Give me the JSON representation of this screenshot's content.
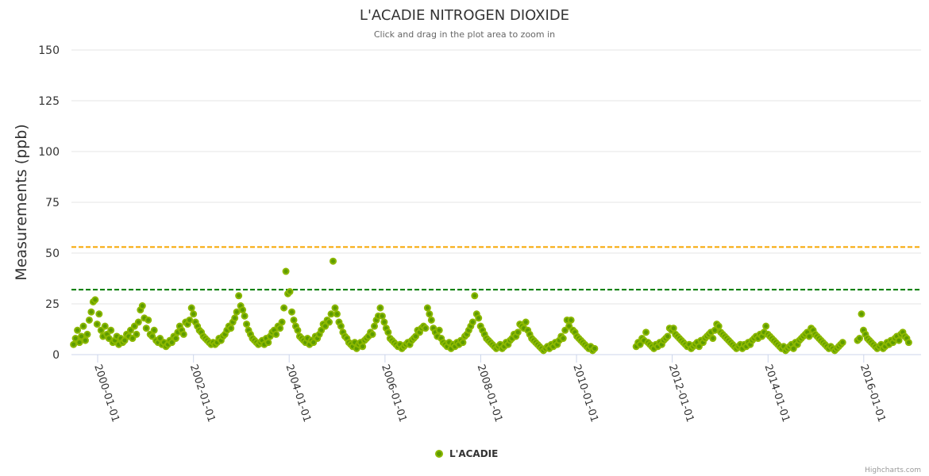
{
  "chart_data": {
    "type": "scatter",
    "title": "L'ACADIE NITROGEN DIOXIDE",
    "subtitle": "Click and drag in the plot area to zoom in",
    "ylabel": "Measurements (ppb)",
    "xlabel": "",
    "ylim": [
      0,
      150
    ],
    "yticks": [
      0,
      25,
      50,
      75,
      100,
      125,
      150
    ],
    "xlim": [
      "1999-06-15",
      "2017-03-01"
    ],
    "xticks": [
      "2000-01-01",
      "2002-01-01",
      "2004-01-01",
      "2006-01-01",
      "2008-01-01",
      "2010-01-01",
      "2012-01-01",
      "2014-01-01",
      "2016-01-01"
    ],
    "grid": true,
    "legend_position": "bottom-center",
    "thresholds": [
      {
        "value": 53,
        "color": "#f7a600",
        "style": "dashed"
      },
      {
        "value": 32,
        "color": "#007a00",
        "style": "dashed"
      }
    ],
    "series": [
      {
        "name": "L'ACADIE",
        "color": "#7cb000",
        "segments": [
          {
            "start": "1999-07-01",
            "step_days": 15,
            "values": [
              5,
              8,
              12,
              6,
              9,
              14,
              7,
              10,
              17,
              21,
              26,
              27,
              15,
              20,
              12,
              9,
              14,
              10,
              8,
              12,
              6,
              7,
              9,
              5,
              8,
              6,
              7,
              10,
              9,
              12,
              8,
              14,
              10,
              16,
              22,
              24,
              18,
              13,
              17,
              10,
              9,
              12,
              7,
              6,
              8,
              5,
              6,
              4,
              5,
              7,
              6,
              9,
              8,
              11,
              14,
              12,
              10,
              16,
              15,
              17,
              23,
              20,
              16,
              14,
              12,
              11,
              9,
              8,
              7,
              6,
              5,
              6,
              5,
              6,
              8,
              7,
              9,
              10,
              12,
              14,
              13,
              16,
              18,
              21,
              29,
              24,
              22,
              19,
              15,
              12,
              10,
              8,
              7,
              6,
              5,
              6,
              7,
              5,
              8,
              6,
              9,
              11,
              12,
              10,
              14,
              13,
              16,
              23,
              41,
              30,
              31,
              21,
              17,
              14,
              12,
              9,
              8,
              7,
              6,
              8,
              5,
              7,
              6,
              9,
              8,
              10,
              12,
              15,
              14,
              17,
              16,
              20,
              46,
              23,
              20,
              16,
              14,
              11,
              9,
              8,
              6,
              5,
              4,
              6,
              3,
              5,
              6,
              4,
              7,
              8,
              9,
              11,
              10,
              14,
              17,
              19,
              23,
              19,
              16,
              13,
              11,
              8,
              7,
              6,
              5,
              4,
              5,
              3,
              4,
              5,
              6,
              5,
              7,
              8,
              9,
              12,
              11,
              13,
              14,
              13,
              23,
              20,
              17,
              13,
              11,
              9,
              12,
              8,
              6,
              5,
              4,
              6,
              3,
              5,
              4,
              6,
              5,
              7,
              6,
              9,
              10,
              12,
              14,
              16,
              29,
              20,
              18,
              14,
              12,
              10,
              8,
              7,
              6,
              5,
              4,
              3,
              4,
              5,
              3,
              4,
              6,
              5,
              7,
              8,
              10,
              9,
              11,
              15,
              14,
              13,
              16,
              12,
              10,
              8,
              7,
              6,
              5,
              4,
              3,
              2,
              3,
              4,
              3,
              5,
              4,
              6,
              5,
              7,
              9,
              8,
              12,
              17,
              14,
              17,
              12,
              11,
              9,
              8,
              7,
              6,
              5,
              4,
              3,
              4,
              2,
              3
            ]
          },
          {
            "start": "2011-04-01",
            "step_days": 15,
            "values": [
              4,
              6,
              5,
              8,
              7,
              11,
              6,
              5,
              4,
              3,
              5,
              4,
              6,
              5,
              7,
              8,
              9,
              13,
              12,
              13,
              10,
              9,
              8,
              7,
              6,
              5,
              4,
              5,
              3,
              4,
              5,
              6,
              4,
              7,
              6,
              8,
              9,
              10,
              11,
              8,
              12,
              15,
              14,
              11,
              10,
              9,
              8,
              7,
              6,
              5,
              4,
              3,
              4,
              5,
              3,
              5,
              4,
              6,
              5,
              7,
              8,
              9,
              8,
              10,
              9,
              11,
              14,
              10,
              9,
              8,
              7,
              6,
              5,
              4,
              3,
              4,
              2,
              3,
              4,
              5,
              3,
              6,
              5,
              7,
              8,
              9,
              10,
              11,
              9,
              13,
              12,
              10,
              9,
              8,
              7,
              6,
              5,
              4,
              3,
              4,
              3,
              2,
              3,
              4,
              5,
              6
            ]
          },
          {
            "start": "2015-11-15",
            "step_days": 15,
            "values": [
              7,
              8,
              20,
              12,
              10,
              8,
              7,
              6,
              5,
              4,
              3,
              4,
              5,
              3,
              4,
              6,
              5,
              7,
              6,
              8,
              9,
              7,
              10,
              11,
              9,
              8,
              6
            ]
          }
        ]
      }
    ],
    "credits": "Highcharts.com"
  }
}
